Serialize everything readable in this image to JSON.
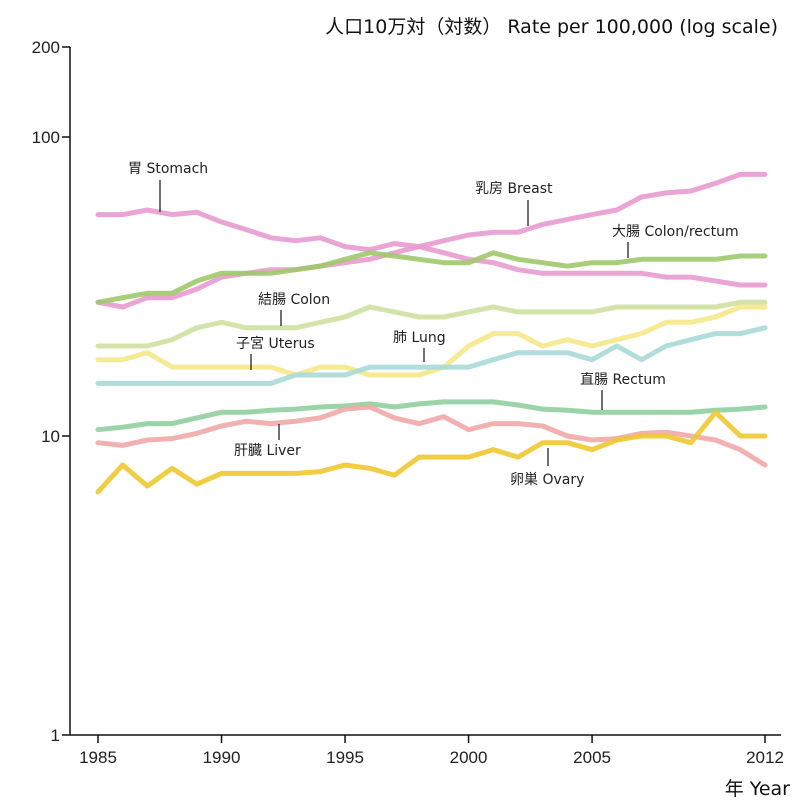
{
  "chart_data": {
    "type": "line",
    "title": "人口10万対（対数） Rate per 100,000 (log scale)",
    "xlabel": "年 Year",
    "ylabel": "",
    "y_scale": "log",
    "ylim": [
      1,
      200
    ],
    "xlim": [
      1985,
      2012
    ],
    "yticks": [
      1,
      10,
      100,
      200
    ],
    "ytick_labels": [
      "1",
      "10",
      "100",
      "200"
    ],
    "xticks": [
      1985,
      1990,
      1995,
      2000,
      2005,
      2012
    ],
    "xtick_labels": [
      "1985",
      "1990",
      "1995",
      "2000",
      "2005",
      "2012"
    ],
    "x": [
      1985,
      1986,
      1987,
      1988,
      1989,
      1990,
      1991,
      1992,
      1993,
      1994,
      1995,
      1996,
      1997,
      1998,
      1999,
      2000,
      2001,
      2002,
      2003,
      2004,
      2005,
      2006,
      2007,
      2008,
      2009,
      2010,
      2011,
      2012
    ],
    "series": [
      {
        "name": "乳房 Breast",
        "color": "#e89bd0",
        "values": [
          28,
          27,
          29,
          29,
          31,
          34,
          35,
          36,
          36,
          37,
          38,
          39,
          41,
          43,
          45,
          47,
          48,
          48,
          51,
          53,
          55,
          57,
          63,
          65,
          66,
          70,
          75,
          75
        ]
      },
      {
        "name": "胃 Stomach",
        "color": "#e89bd0",
        "values": [
          55,
          55,
          57,
          55,
          56,
          52,
          49,
          46,
          45,
          46,
          43,
          42,
          44,
          43,
          41,
          39,
          38,
          36,
          35,
          35,
          35,
          35,
          35,
          34,
          34,
          33,
          32,
          32
        ]
      },
      {
        "name": "大腸 Colon/rectum",
        "color": "#9fc96a",
        "values": [
          28,
          29,
          30,
          30,
          33,
          35,
          35,
          35,
          36,
          37,
          39,
          41,
          40,
          39,
          38,
          38,
          41,
          39,
          38,
          37,
          38,
          38,
          39,
          39,
          39,
          39,
          40,
          40
        ]
      },
      {
        "name": "結腸 Colon",
        "color": "#cfe0a0",
        "values": [
          20,
          20,
          20,
          21,
          23,
          24,
          23,
          23,
          23,
          24,
          25,
          27,
          26,
          25,
          25,
          26,
          27,
          26,
          26,
          26,
          26,
          27,
          27,
          27,
          27,
          27,
          28,
          28
        ]
      },
      {
        "name": "子宮 Uterus",
        "color": "#f5e88a",
        "values": [
          18,
          18,
          19,
          17,
          17,
          17,
          17,
          17,
          16,
          17,
          17,
          16,
          16,
          16,
          17,
          20,
          22,
          22,
          20,
          21,
          20,
          21,
          22,
          24,
          24,
          25,
          27,
          27
        ]
      },
      {
        "name": "肺 Lung",
        "color": "#a9d9d6",
        "values": [
          15,
          15,
          15,
          15,
          15,
          15,
          15,
          15,
          16,
          16,
          16,
          17,
          17,
          17,
          17,
          17,
          18,
          19,
          19,
          19,
          18,
          20,
          18,
          20,
          21,
          22,
          22,
          23
        ]
      },
      {
        "name": "直腸 Rectum",
        "color": "#8fcf9e",
        "values": [
          10.5,
          10.7,
          11,
          11,
          11.5,
          12,
          12,
          12.2,
          12.3,
          12.5,
          12.6,
          12.8,
          12.5,
          12.8,
          13,
          13,
          13,
          12.7,
          12.3,
          12.2,
          12,
          12,
          12,
          12,
          12,
          12.2,
          12.3,
          12.5
        ]
      },
      {
        "name": "肝臓 Liver",
        "color": "#f0a8a8",
        "values": [
          9.5,
          9.3,
          9.7,
          9.8,
          10.2,
          10.8,
          11.2,
          11,
          11.2,
          11.5,
          12.3,
          12.5,
          11.5,
          11,
          11.6,
          10.5,
          11,
          11,
          10.8,
          10,
          9.7,
          9.8,
          10.2,
          10.3,
          10,
          9.7,
          9,
          8
        ]
      },
      {
        "name": "卵巣 Ovary",
        "color": "#f0c830",
        "values": [
          6.5,
          8,
          6.8,
          7.8,
          6.9,
          7.5,
          7.5,
          7.5,
          7.5,
          7.6,
          8,
          7.8,
          7.4,
          8.5,
          8.5,
          8.5,
          9,
          8.5,
          9.5,
          9.5,
          9,
          9.7,
          10,
          10,
          9.5,
          12,
          10,
          10
        ]
      }
    ]
  }
}
